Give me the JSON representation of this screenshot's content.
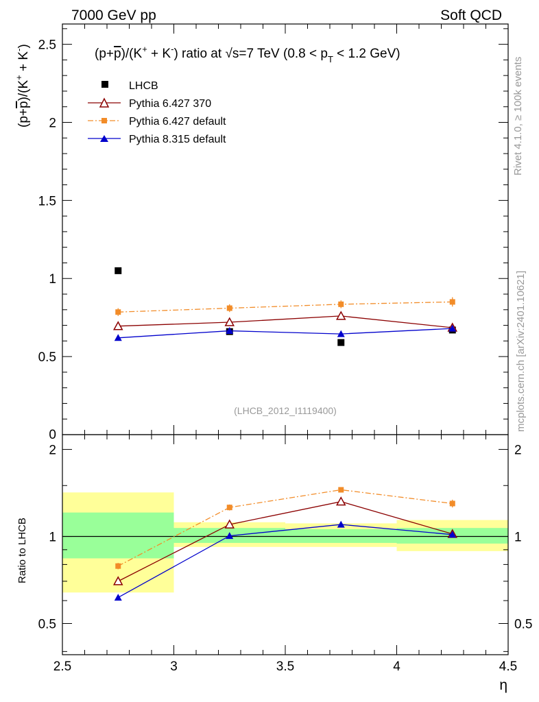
{
  "header": {
    "left": "7000 GeV pp",
    "right": "Soft QCD"
  },
  "side": {
    "rivet": "Rivet 4.1.0, ≥ 100k events",
    "mcplots": "mcplots.cern.ch [arXiv:2401.10621]"
  },
  "colors": {
    "lhcb": "#000000",
    "py6_370": "#8b0000",
    "py6_def": "#f28c28",
    "py8": "#0000cc",
    "band_inner": "#99ff99",
    "band_outer": "#ffff99"
  },
  "chart_data": [
    {
      "type": "scatter",
      "title": "(p+p̅)/(K⁺ + K⁻) ratio at √s=7 TeV (0.8 < p_T < 1.2 GeV)",
      "title_parts": {
        "a": "(p+",
        "pbar": "p",
        "b": ")/(K",
        "plus": "+",
        "c": " + K",
        "minus": "-",
        "d": ") ratio at ",
        "sqrt": "√",
        "e": "s=7 TeV (0.8 < p",
        "sub": "T",
        "f": " < 1.2 GeV)"
      },
      "ylabel": "(p+p̅)/(K⁺ + K⁻)",
      "ylabel_parts": {
        "a": "(p+",
        "pbar": "p",
        "b": ")/(K",
        "plus": "+",
        "c": " + K",
        "minus": "-",
        "d": ")"
      },
      "watermark": "(LHCB_2012_I1119400)",
      "xlim": [
        2.5,
        4.5
      ],
      "ylim": [
        0,
        2.63
      ],
      "yticks": [
        0.5,
        1,
        1.5,
        2,
        2.5
      ],
      "yticklabels": [
        "0.5",
        "1",
        "1.5",
        "2",
        "2.5"
      ],
      "ytick_zero_label": "0",
      "x": [
        2.75,
        3.25,
        3.75,
        4.25
      ],
      "series": [
        {
          "name": "LHCB",
          "values": [
            1.05,
            0.66,
            0.59,
            0.67
          ]
        },
        {
          "name": "Pythia 6.427 370",
          "values": [
            0.695,
            0.72,
            0.76,
            0.685
          ]
        },
        {
          "name": "Pythia 6.427 default",
          "values": [
            0.785,
            0.81,
            0.835,
            0.85
          ],
          "errors": [
            0.025,
            0.025,
            0.025,
            0.03
          ]
        },
        {
          "name": "Pythia 8.315 default",
          "values": [
            0.62,
            0.665,
            0.645,
            0.68
          ]
        }
      ]
    },
    {
      "type": "scatter",
      "ylabel": "Ratio to LHCB",
      "xlabel": "η",
      "xlim": [
        2.5,
        4.5
      ],
      "ylim": [
        0.39,
        2.25
      ],
      "xticks": [
        2.5,
        3,
        3.5,
        4,
        4.5
      ],
      "xticklabels": [
        "2.5",
        "3",
        "3.5",
        "4",
        "4.5"
      ],
      "yticks": [
        0.5,
        1,
        2
      ],
      "yticklabels": [
        "0.5",
        "1",
        "2"
      ],
      "reference_line": 1,
      "bands": [
        {
          "x": [
            2.5,
            3.0
          ],
          "inner": [
            0.84,
            1.21
          ],
          "outer": [
            0.64,
            1.42
          ]
        },
        {
          "x": [
            3.0,
            3.5
          ],
          "inner": [
            0.95,
            1.07
          ],
          "outer": [
            0.92,
            1.12
          ]
        },
        {
          "x": [
            3.5,
            4.0
          ],
          "inner": [
            0.95,
            1.06
          ],
          "outer": [
            0.92,
            1.11
          ]
        },
        {
          "x": [
            4.0,
            4.5
          ],
          "inner": [
            0.945,
            1.07
          ],
          "outer": [
            0.89,
            1.14
          ]
        }
      ],
      "x": [
        2.75,
        3.25,
        3.75,
        4.25
      ],
      "series": [
        {
          "name": "Pythia 6.427 370",
          "values": [
            0.7,
            1.1,
            1.32,
            1.02
          ]
        },
        {
          "name": "Pythia 6.427 default",
          "values": [
            0.79,
            1.26,
            1.45,
            1.3
          ],
          "errors": [
            0.02,
            0.03,
            0.03,
            0.04
          ]
        },
        {
          "name": "Pythia 8.315 default",
          "values": [
            0.615,
            1.005,
            1.1,
            1.015
          ]
        }
      ]
    }
  ]
}
